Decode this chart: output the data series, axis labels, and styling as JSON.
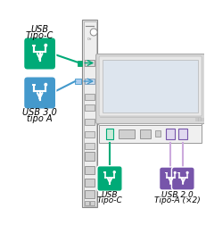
{
  "bg_color": "#ffffff",
  "green": "#00aa77",
  "blue": "#4499cc",
  "purple": "#7755aa",
  "dark_gray": "#555555",
  "mid_gray": "#999999",
  "light_gray": "#cccccc",
  "panel_gray": "#e0e0e0",
  "labels": {
    "usbc_top_1": "USB",
    "usbc_top_2": "Tipo-C",
    "usb3_1": "USB 3.0",
    "usb3_2": "tipo A",
    "bottom_usbc_1": "USB",
    "bottom_usbc_2": "Tipo-C",
    "bottom_usb2_1": "USB 2.0",
    "bottom_usb2_2": "Tipo-A (×2)"
  }
}
